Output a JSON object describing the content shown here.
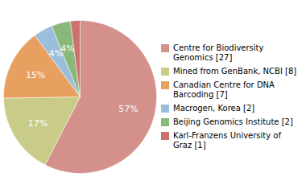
{
  "chart_data": {
    "type": "pie",
    "categories": [
      "Centre for Biodiversity\nGenomics [27]",
      "Mined from GenBank, NCBI [8]",
      "Canadian Centre for DNA\nBarcoding [7]",
      "Macrogen, Korea [2]",
      "Beijing Genomics Institute [2]",
      "Karl-Franzens University of\nGraz [1]"
    ],
    "values": [
      57,
      17,
      15,
      4,
      4,
      2
    ],
    "value_labels": [
      "57%",
      "17%",
      "15%",
      "4%",
      "4%",
      null
    ],
    "colors": [
      "#d4908a",
      "#c8cc88",
      "#e8a060",
      "#9bbfdb",
      "#8ab87a",
      "#cc7070"
    ],
    "data_labels": true,
    "legend": "right"
  }
}
